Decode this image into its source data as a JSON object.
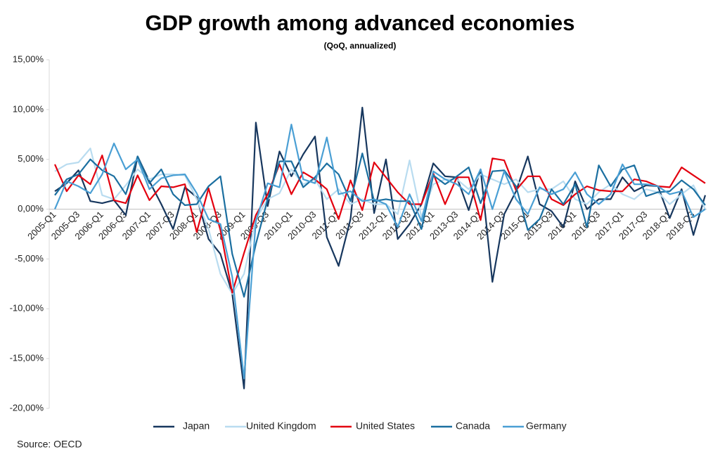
{
  "chart_data": {
    "type": "line",
    "title": "GDP growth among advanced economies",
    "subtitle": "(QoQ, annualized)",
    "source": "Source: OECD",
    "categories": [
      "2005-Q1",
      null,
      "2005-Q3",
      null,
      "2006-Q1",
      null,
      "2006-Q3",
      null,
      "2007-Q1",
      null,
      "2007-Q3",
      null,
      "2008-Q1",
      null,
      "2008-Q3",
      null,
      "2009-Q1",
      null,
      "2009-Q3",
      null,
      "2010-Q1",
      null,
      "2010-Q3",
      null,
      "2011-Q1",
      null,
      "2011-Q3",
      null,
      "2012-Q1",
      null,
      "2012-Q3",
      null,
      "2013-Q1",
      null,
      "2013-Q3",
      null,
      "2014-Q1",
      null,
      "2014-Q3",
      null,
      "2015-Q1",
      null,
      "2015-Q3",
      null,
      "2016-Q1",
      null,
      "2016-Q3",
      null,
      "2017-Q1",
      null,
      "2017-Q3",
      null,
      "2018-Q1",
      null,
      "2018-Q3",
      null
    ],
    "series": [
      {
        "name": "Japan",
        "color": "#17375e",
        "values": [
          1.8,
          2.6,
          3.9,
          0.8,
          0.6,
          0.9,
          -0.6,
          5.3,
          2.8,
          0.5,
          -2.0,
          2.2,
          1.2,
          -3.0,
          -4.5,
          -8.5,
          -18.0,
          8.7,
          0.3,
          5.8,
          3.3,
          5.5,
          7.3,
          -2.8,
          -5.7,
          -1.0,
          10.2,
          -0.4,
          5.0,
          -3.0,
          -1.5,
          0.5,
          4.6,
          3.3,
          3.2,
          -0.1,
          4.0,
          -7.3,
          -0.5,
          1.8,
          5.3,
          0.5,
          -0.2,
          -1.8,
          2.8,
          0.0,
          1.0,
          1.0,
          3.2,
          1.8,
          2.4,
          2.3,
          -0.9,
          2.0,
          -2.6,
          1.4
        ]
      },
      {
        "name": "United Kingdom",
        "color": "#b9dcf0",
        "values": [
          3.8,
          4.5,
          4.7,
          6.1,
          1.4,
          1.0,
          2.4,
          4.0,
          3.0,
          3.5,
          3.5,
          3.4,
          1.0,
          -2.0,
          -6.5,
          -8.5,
          -6.5,
          -1.0,
          1.0,
          1.6,
          4.0,
          2.5,
          3.0,
          1.0,
          2.0,
          0.5,
          1.0,
          0.5,
          0.5,
          -0.5,
          4.9,
          -0.8,
          2.5,
          3.0,
          3.0,
          2.0,
          3.5,
          3.0,
          2.5,
          3.0,
          1.7,
          2.0,
          2.0,
          2.8,
          1.0,
          0.5,
          1.7,
          2.5,
          1.5,
          1.0,
          2.0,
          1.7,
          0.5,
          1.5,
          2.4,
          0.0
        ]
      },
      {
        "name": "United States",
        "color": "#e3000f",
        "values": [
          4.5,
          1.8,
          3.4,
          2.5,
          5.4,
          0.9,
          0.6,
          3.4,
          0.9,
          2.3,
          2.2,
          2.5,
          -2.3,
          2.1,
          -2.1,
          -8.4,
          -4.4,
          -0.6,
          1.5,
          4.5,
          1.5,
          3.7,
          3.0,
          2.0,
          -1.0,
          2.9,
          -0.1,
          4.7,
          3.2,
          1.7,
          0.5,
          0.5,
          3.6,
          0.5,
          3.2,
          3.2,
          -1.1,
          5.1,
          4.9,
          1.9,
          3.3,
          3.3,
          1.0,
          0.4,
          1.5,
          2.3,
          1.9,
          1.8,
          1.8,
          3.0,
          2.8,
          2.3,
          2.2,
          4.2,
          3.4,
          2.6
        ]
      },
      {
        "name": "Canada",
        "color": "#1b6fa0",
        "values": [
          1.4,
          3.0,
          3.5,
          5.0,
          3.9,
          3.3,
          1.5,
          5.3,
          2.6,
          4.0,
          1.5,
          0.4,
          0.5,
          2.3,
          3.3,
          -4.5,
          -8.8,
          -3.5,
          1.0,
          4.8,
          4.8,
          2.2,
          3.2,
          4.6,
          3.5,
          0.8,
          5.6,
          0.8,
          1.0,
          0.8,
          0.8,
          -2.0,
          3.4,
          2.5,
          3.3,
          4.2,
          0.6,
          3.8,
          3.9,
          2.3,
          -2.1,
          -1.0,
          2.0,
          0.5,
          2.5,
          -1.8,
          4.4,
          2.3,
          4.0,
          4.4,
          1.3,
          1.7,
          1.8,
          2.9,
          2.0,
          0.4
        ]
      },
      {
        "name": "Germany",
        "color": "#4a9fd4",
        "values": [
          0.0,
          2.8,
          2.3,
          1.6,
          3.5,
          6.6,
          4.0,
          5.0,
          2.0,
          3.1,
          3.4,
          3.5,
          1.6,
          -1.0,
          -1.5,
          -6.8,
          -17.0,
          -1.2,
          2.6,
          2.2,
          8.5,
          3.0,
          2.6,
          7.2,
          1.5,
          1.8,
          0.8,
          1.0,
          0.5,
          -1.8,
          1.5,
          -1.2,
          3.8,
          3.0,
          2.5,
          1.5,
          4.0,
          0.0,
          3.8,
          1.0,
          -0.5,
          2.2,
          1.5,
          2.0,
          3.7,
          1.5,
          0.5,
          1.5,
          4.5,
          2.5,
          2.5,
          2.3,
          1.5,
          1.8,
          -0.8,
          0.0
        ]
      }
    ],
    "ylim": [
      -20,
      15
    ],
    "yticks": [
      {
        "value": -20,
        "label": "-20,00%"
      },
      {
        "value": -15,
        "label": "-15,00%"
      },
      {
        "value": -10,
        "label": "-10,00%"
      },
      {
        "value": -5,
        "label": "-5,00%"
      },
      {
        "value": 0,
        "label": "0,00%"
      },
      {
        "value": 5,
        "label": "5,00%"
      },
      {
        "value": 10,
        "label": "10,00%"
      },
      {
        "value": 15,
        "label": "15,00%"
      }
    ],
    "grid": false,
    "legend": "bottom"
  }
}
